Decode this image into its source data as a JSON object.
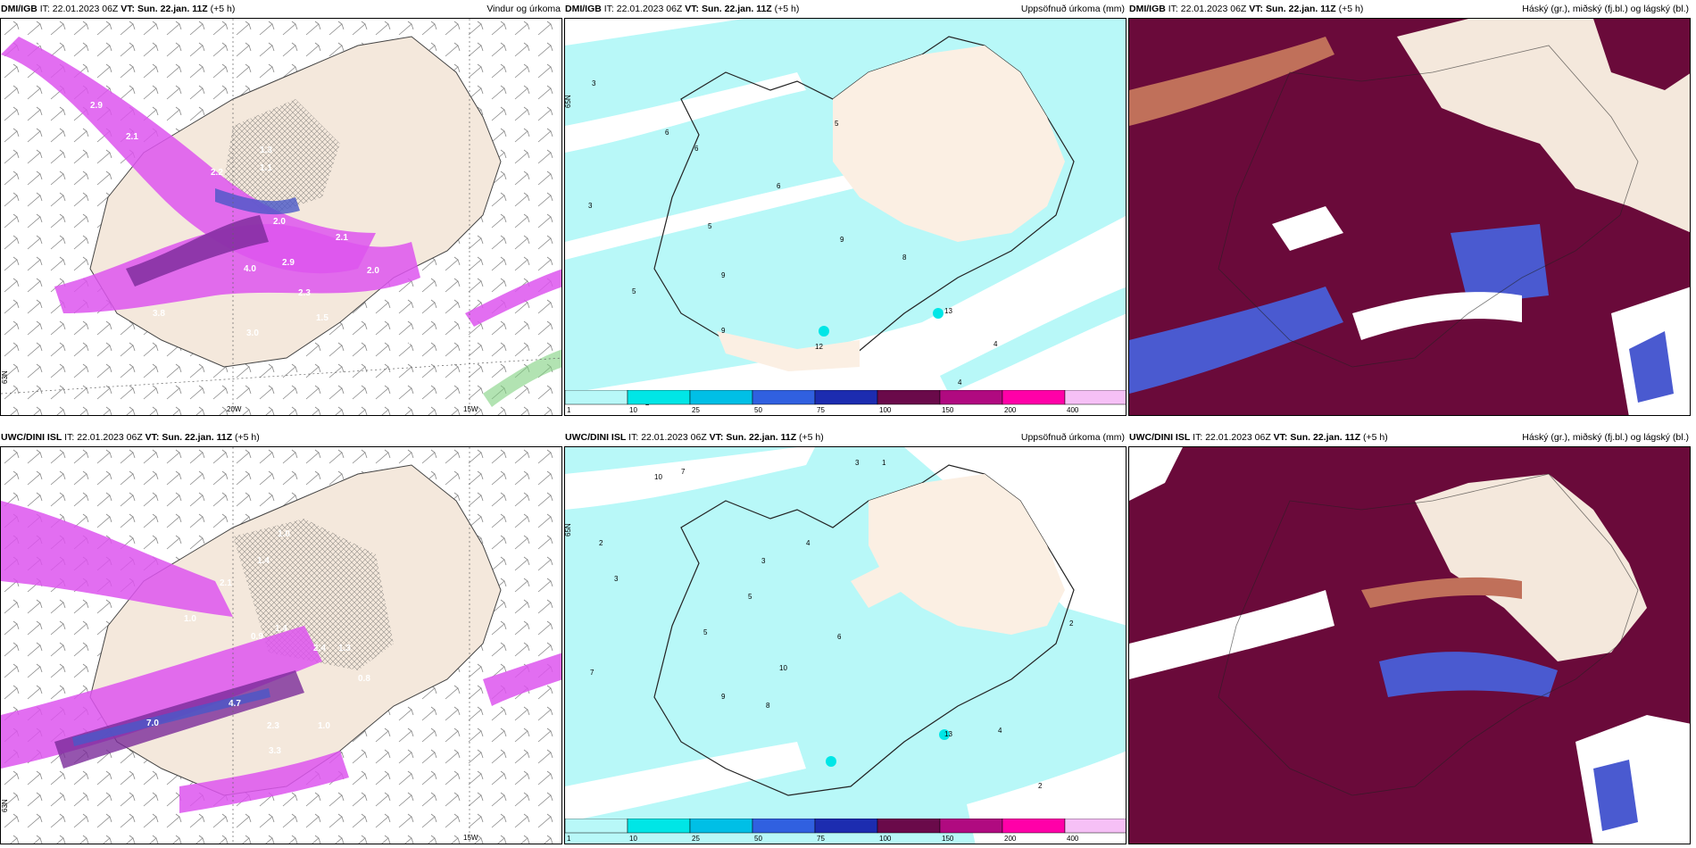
{
  "rows": [
    {
      "model": "DMI/IGB",
      "it_label": "IT:",
      "it": "22.01.2023 06Z",
      "vt_label": "VT:",
      "vt": "Sun. 22.jan. 11Z",
      "lead": "(+5 h)"
    },
    {
      "model": "UWC/DINI ISL",
      "it_label": "IT:",
      "it": "22.01.2023 06Z",
      "vt_label": "VT:",
      "vt": "Sun. 22.jan. 11Z",
      "lead": "(+5 h)"
    }
  ],
  "titles": {
    "wind": "Vindur og úrkoma",
    "precip": "Uppsöfnuð úrkoma (mm)",
    "cloud": "Háský (gr.), miðský (fj.bl.) og lágský (bl.)"
  },
  "axis_labels": {
    "lon20": "20W",
    "lon15": "15W",
    "lat65": "65N",
    "lat63": "63N"
  },
  "colorbar": {
    "ticks": [
      "1",
      "10",
      "25",
      "50",
      "75",
      "100",
      "150",
      "200",
      "400"
    ],
    "colors": [
      "#b8f8f8",
      "#00e6e6",
      "#00bfe6",
      "#3060e0",
      "#1c2cb0",
      "#6a0a4a",
      "#b00a80",
      "#ff00a8",
      "#f6c0f6"
    ]
  },
  "colors": {
    "land": "#f4e8dc",
    "precip_light": "#b8f8f8",
    "precip_mid": "#00e6e6",
    "wind_precip": "#dd55ee",
    "wind_precip_dark": "#7a2a9a",
    "cloud_high": "#6a0a3a",
    "cloud_mid": "#c0705a",
    "cloud_low": "#4a5ad0"
  },
  "wind_values_top": [
    "1.0",
    "2.9",
    "2.1",
    "1.3",
    "2.2",
    "1.1",
    "2.0",
    "2.1",
    "4.0",
    "2.9",
    "2.0",
    "2.3",
    "2.7",
    "3.8",
    "3.0",
    "1.5",
    "1.3"
  ],
  "wind_values_bottom": [
    "1.3",
    "1.0",
    "2.1",
    "1.4",
    "1.0",
    "0.9",
    "1.4",
    "2.4",
    "1.3",
    "0.8",
    "4.7",
    "7.0",
    "1.0",
    "2.3",
    "3.3"
  ],
  "precip_values_top": [
    "3",
    "6",
    "6",
    "5",
    "6",
    "3",
    "5",
    "9",
    "9",
    "8",
    "5",
    "9",
    "12",
    "13",
    "4",
    "4",
    "2"
  ],
  "precip_values_bottom": [
    "10",
    "7",
    "3",
    "1",
    "2",
    "3",
    "4",
    "3",
    "5",
    "6",
    "7",
    "8",
    "10",
    "5",
    "9",
    "2",
    "4",
    "13",
    "2"
  ]
}
